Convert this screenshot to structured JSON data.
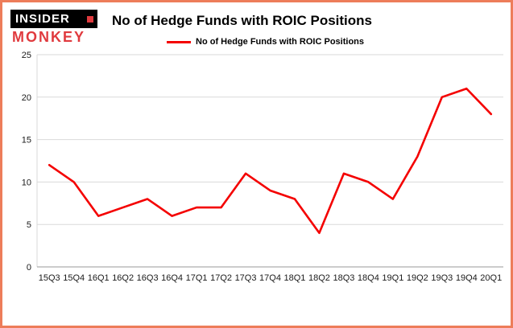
{
  "logo": {
    "line1": "INSIDER",
    "line2": "MONKEY"
  },
  "title": "No of Hedge Funds with ROIC Positions",
  "legend": {
    "label": "No of Hedge Funds with ROIC Positions"
  },
  "colors": {
    "line": "#f40000",
    "border": "#ed7d5a",
    "grid": "#d9d9d9",
    "axis": "#9a9a9a",
    "tick_text": "#1a1a1a",
    "logo_red": "#e03a3e"
  },
  "chart_data": {
    "type": "line",
    "title": "No of Hedge Funds with ROIC Positions",
    "categories": [
      "15Q3",
      "15Q4",
      "16Q1",
      "16Q2",
      "16Q3",
      "16Q4",
      "17Q1",
      "17Q2",
      "17Q3",
      "17Q4",
      "18Q1",
      "18Q2",
      "18Q3",
      "18Q4",
      "19Q1",
      "19Q2",
      "19Q3",
      "19Q4",
      "20Q1"
    ],
    "values": [
      12,
      10,
      6,
      7,
      8,
      6,
      7,
      7,
      11,
      9,
      8,
      4,
      11,
      10,
      8,
      13,
      20,
      21,
      18
    ],
    "xlabel": "",
    "ylabel": "",
    "ylim": [
      0,
      25
    ],
    "yticks": [
      0,
      5,
      10,
      15,
      20,
      25
    ],
    "grid": "horizontal",
    "legend_position": "top"
  }
}
